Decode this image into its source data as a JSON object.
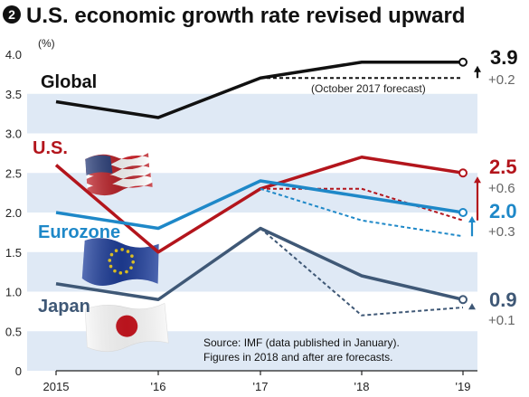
{
  "header": {
    "badge": "❷",
    "title": "U.S. economic growth rate revised upward"
  },
  "unit_label": "(%)",
  "note": "(October 2017 forecast)",
  "source_lines": [
    "Source: IMF (data published in January).",
    "Figures in 2018 and after are forecasts."
  ],
  "colors": {
    "band": "#dfe9f5",
    "global": "#111111",
    "us": "#b3151c",
    "eurozone": "#1e88c8",
    "japan": "#3f5876",
    "arrow_global": "#111111",
    "arrow_us": "#b3151c",
    "arrow_euro": "#1e88c8",
    "arrow_japan": "#3f5876"
  },
  "flags": [
    "us-flag-icon",
    "eu-flag-icon",
    "japan-flag-icon"
  ],
  "chart_data": {
    "type": "line",
    "x": [
      "2015",
      "'16",
      "'17",
      "'18",
      "'19"
    ],
    "ylim": [
      0,
      4.0
    ],
    "yticks": [
      "0",
      "0.5",
      "1.0",
      "1.5",
      "2.0",
      "2.5",
      "3.0",
      "3.5",
      "4.0"
    ],
    "grid": true,
    "series": [
      {
        "name": "Global",
        "color_key": "global",
        "values": [
          3.4,
          3.2,
          3.7,
          3.9,
          3.9
        ],
        "forecast_oct2017": [
          null,
          null,
          3.7,
          3.7,
          3.7
        ],
        "end_value": "3.9",
        "revision": "+0.2"
      },
      {
        "name": "U.S.",
        "color_key": "us",
        "values": [
          2.6,
          1.5,
          2.3,
          2.7,
          2.5
        ],
        "forecast_oct2017": [
          null,
          null,
          2.3,
          2.3,
          1.9
        ],
        "end_value": "2.5",
        "revision": "+0.6"
      },
      {
        "name": "Eurozone",
        "color_key": "eurozone",
        "values": [
          2.0,
          1.8,
          2.4,
          2.2,
          2.0
        ],
        "forecast_oct2017": [
          null,
          null,
          2.3,
          1.9,
          1.7
        ],
        "end_value": "2.0",
        "revision": "+0.3"
      },
      {
        "name": "Japan",
        "color_key": "japan",
        "values": [
          1.1,
          0.9,
          1.8,
          1.2,
          0.9
        ],
        "forecast_oct2017": [
          null,
          null,
          1.8,
          0.7,
          0.8
        ],
        "end_value": "0.9",
        "revision": "+0.1"
      }
    ]
  }
}
